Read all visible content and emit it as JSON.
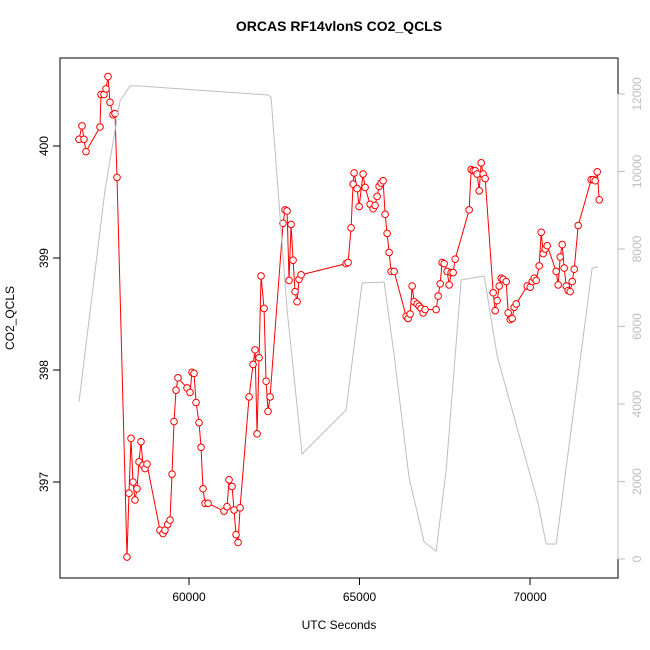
{
  "chart_data": {
    "type": "line",
    "title": "ORCAS RF14vlonS CO2_QCLS",
    "x_label": "UTC Seconds",
    "y_label": "CO2_QCLS",
    "xlim": [
      56217,
      72580
    ],
    "xticks": [
      60000,
      65000,
      70000
    ],
    "ylim": [
      396.143,
      400.786
    ],
    "yticks": [
      397,
      398,
      399,
      400
    ],
    "y2lim": [
      -490,
      12929
    ],
    "y2ticks": [
      0,
      2000,
      4000,
      6000,
      8000,
      10000,
      12000
    ],
    "series": [
      {
        "color": "#ff0000",
        "marker": "circle",
        "x": [
          56774,
          56862,
          56920,
          56979,
          57390,
          57419,
          57507,
          57566,
          57625,
          57683,
          57771,
          57830,
          57889,
          58182,
          58240,
          58299,
          58358,
          58416,
          58475,
          58534,
          58592,
          58651,
          58710,
          58768,
          59149,
          59237,
          59296,
          59375,
          59443,
          59502,
          59561,
          59619,
          59678,
          59942,
          60030,
          60089,
          60147,
          60206,
          60294,
          60353,
          60411,
          60470,
          60558,
          61027,
          61115,
          61174,
          61262,
          61321,
          61379,
          61438,
          61497,
          61761,
          61878,
          61937,
          61996,
          62054,
          62113,
          62201,
          62260,
          62318,
          62377,
          62758,
          62817,
          62876,
          62934,
          62993,
          63052,
          63110,
          63169,
          63228,
          63286,
          64606,
          64665,
          64753,
          64811,
          64841,
          64929,
          64988,
          65105,
          65164,
          65311,
          65399,
          65457,
          65516,
          65575,
          65634,
          65692,
          65751,
          65810,
          65868,
          65927,
          66015,
          66367,
          66426,
          66484,
          66543,
          66602,
          66690,
          66748,
          66807,
          66866,
          66924,
          67247,
          67306,
          67365,
          67423,
          67482,
          67570,
          67629,
          67687,
          67746,
          67805,
          68215,
          68274,
          68333,
          68392,
          68450,
          68509,
          68568,
          68626,
          68685,
          68920,
          68978,
          69037,
          69096,
          69154,
          69213,
          69301,
          69360,
          69419,
          69477,
          69536,
          69595,
          69917,
          70005,
          70064,
          70123,
          70181,
          70269,
          70328,
          70387,
          70445,
          70504,
          70768,
          70826,
          70885,
          70944,
          71002,
          71061,
          71120,
          71178,
          71237,
          71296,
          71413,
          71794,
          71853,
          71912,
          71970,
          72029
        ],
        "values": [
          400.06,
          400.18,
          400.06,
          399.95,
          400.17,
          400.46,
          400.46,
          400.51,
          400.62,
          400.39,
          400.28,
          400.29,
          399.72,
          396.33,
          396.9,
          397.39,
          397.0,
          396.84,
          396.94,
          397.18,
          397.36,
          397.15,
          397.12,
          397.16,
          396.57,
          396.54,
          396.57,
          396.62,
          396.66,
          397.07,
          397.54,
          397.82,
          397.93,
          397.84,
          397.8,
          397.98,
          397.97,
          397.71,
          397.53,
          397.31,
          396.94,
          396.81,
          396.81,
          396.74,
          396.78,
          397.02,
          396.96,
          396.75,
          396.53,
          396.46,
          396.77,
          397.76,
          398.05,
          398.18,
          397.43,
          398.11,
          398.84,
          398.55,
          397.9,
          397.63,
          397.76,
          399.31,
          399.43,
          399.42,
          398.8,
          399.3,
          398.98,
          398.7,
          398.61,
          398.81,
          398.85,
          398.95,
          398.96,
          399.27,
          399.66,
          399.76,
          399.62,
          399.46,
          399.75,
          399.63,
          399.48,
          399.44,
          399.47,
          399.55,
          399.64,
          399.67,
          399.69,
          399.39,
          399.22,
          399.05,
          398.88,
          398.88,
          398.48,
          398.46,
          398.5,
          398.75,
          398.61,
          398.59,
          398.57,
          398.55,
          398.51,
          398.54,
          398.54,
          398.66,
          398.77,
          398.96,
          398.95,
          398.88,
          398.76,
          398.87,
          398.87,
          398.99,
          399.43,
          399.79,
          399.78,
          399.78,
          399.75,
          399.6,
          399.85,
          399.75,
          399.71,
          398.69,
          398.53,
          398.62,
          398.75,
          398.82,
          398.81,
          398.79,
          398.51,
          398.45,
          398.46,
          398.56,
          398.59,
          398.75,
          398.74,
          398.79,
          398.82,
          398.8,
          398.93,
          399.23,
          399.04,
          399.08,
          399.11,
          398.88,
          398.76,
          399.01,
          399.12,
          398.91,
          398.75,
          398.71,
          398.7,
          398.79,
          398.9,
          399.29,
          399.7,
          399.7,
          399.69,
          399.77,
          399.52
        ]
      },
      {
        "color": "#bebebe",
        "axis": "y2",
        "x": [
          56774,
          57537,
          57977,
          58270,
          58563,
          62318,
          62406,
          62876,
          63316,
          64606,
          65076,
          65721,
          66015,
          66455,
          66895,
          67247,
          67541,
          67981,
          68656,
          69037,
          70240,
          70474,
          70768,
          71823,
          71999
        ],
        "values": [
          4052,
          9523,
          11819,
          12206,
          12206,
          11974,
          11923,
          6426,
          2710,
          3845,
          7123,
          7148,
          5265,
          2090,
          439,
          206,
          2297,
          7200,
          7303,
          5239,
          1419,
          387,
          387,
          7510,
          7535
        ]
      }
    ]
  }
}
